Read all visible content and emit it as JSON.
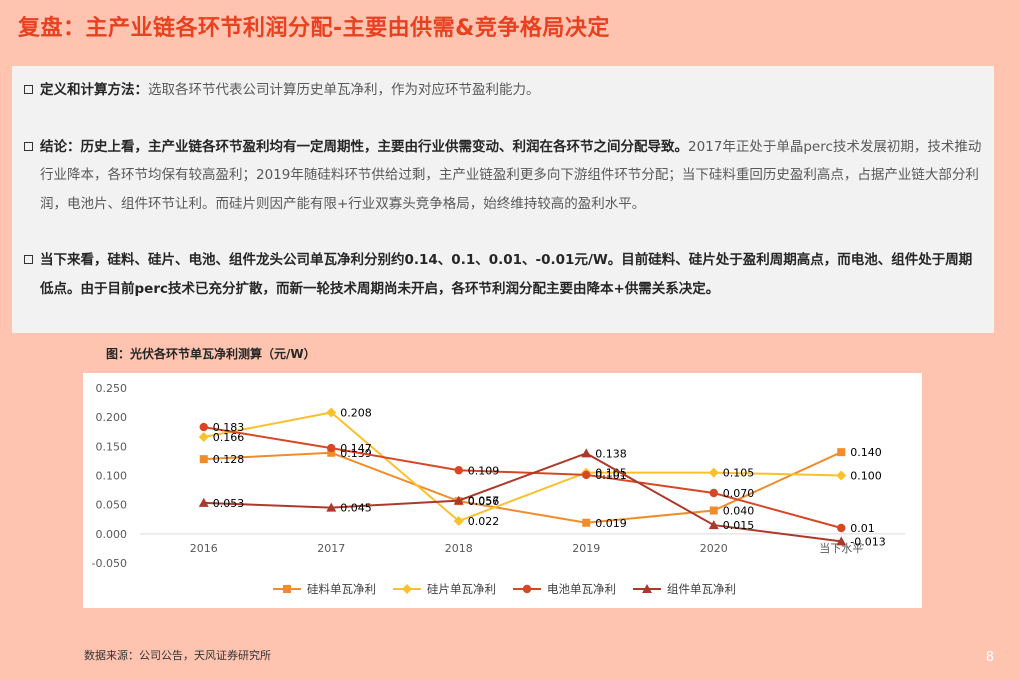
{
  "slide": {
    "title": "复盘：主产业链各环节利润分配-主要由供需&竞争格局决定",
    "page_number": "8",
    "source": "数据来源：公司公告，天风证券研究所"
  },
  "text": {
    "p1_bold": "定义和计算方法：",
    "p1_rest": "选取各环节代表公司计算历史单瓦净利，作为对应环节盈利能力。",
    "p2_bold": "结论：历史上看，主产业链各环节盈利均有一定周期性，主要由行业供需变动、利润在各环节之间分配导致。",
    "p2_rest": "2017年正处于单晶perc技术发展初期，技术推动行业降本，各环节均保有较高盈利；2019年随硅料环节供给过剩，主产业链盈利更多向下游组件环节分配；当下硅料重回历史盈利高点，占据产业链大部分利润，电池片、组件环节让利。而硅片则因产能有限+行业双寡头竞争格局，始终维持较高的盈利水平。",
    "p3_bold": "当下来看，硅料、硅片、电池、组件龙头公司单瓦净利分别约0.14、0.1、0.01、-0.01元/W。目前硅料、硅片处于盈利周期高点，而电池、组件处于周期低点。由于目前perc技术已充分扩散，而新一轮技术周期尚未开启，各环节利润分配主要由降本+供需关系决定。"
  },
  "figure": {
    "title": "图：光伏各环节单瓦净利测算（元/W）"
  },
  "chart_data": {
    "type": "line",
    "categories": [
      "2016",
      "2017",
      "2018",
      "2019",
      "2020",
      "当下水平"
    ],
    "ylim": [
      -0.05,
      0.25
    ],
    "yticks": [
      "0.250",
      "0.200",
      "0.150",
      "0.100",
      "0.050",
      "0.000",
      "-0.050"
    ],
    "ytick_values": [
      0.25,
      0.2,
      0.15,
      0.1,
      0.05,
      0.0,
      -0.05
    ],
    "grid": false,
    "legend_position": "bottom",
    "series": [
      {
        "name": "硅料单瓦净利",
        "marker": "square",
        "color": "#f08c2a",
        "values": [
          0.128,
          0.139,
          0.056,
          0.019,
          0.04,
          0.14
        ],
        "labels": [
          "0.128",
          "0.139",
          "0.056",
          "0.019",
          "0.040",
          "0.140"
        ]
      },
      {
        "name": "硅片单瓦净利",
        "marker": "diamond",
        "color": "#f9c12c",
        "values": [
          0.166,
          0.208,
          0.022,
          0.105,
          0.105,
          0.1
        ],
        "labels": [
          "0.166",
          "0.208",
          "0.022",
          "0.105",
          "0.105",
          "0.100"
        ]
      },
      {
        "name": "电池单瓦净利",
        "marker": "circle",
        "color": "#d84724",
        "values": [
          0.183,
          0.147,
          0.109,
          0.101,
          0.07,
          0.01
        ],
        "labels": [
          "0.183",
          "0.147",
          "0.109",
          "0.101",
          "0.070",
          "0.01"
        ]
      },
      {
        "name": "组件单瓦净利",
        "marker": "triangle",
        "color": "#ab3a2c",
        "values": [
          0.053,
          0.045,
          0.057,
          0.138,
          0.015,
          -0.013
        ],
        "labels": [
          "0.053",
          "0.045",
          "0.057",
          "0.138",
          "0.015",
          "-0.013"
        ]
      }
    ]
  }
}
